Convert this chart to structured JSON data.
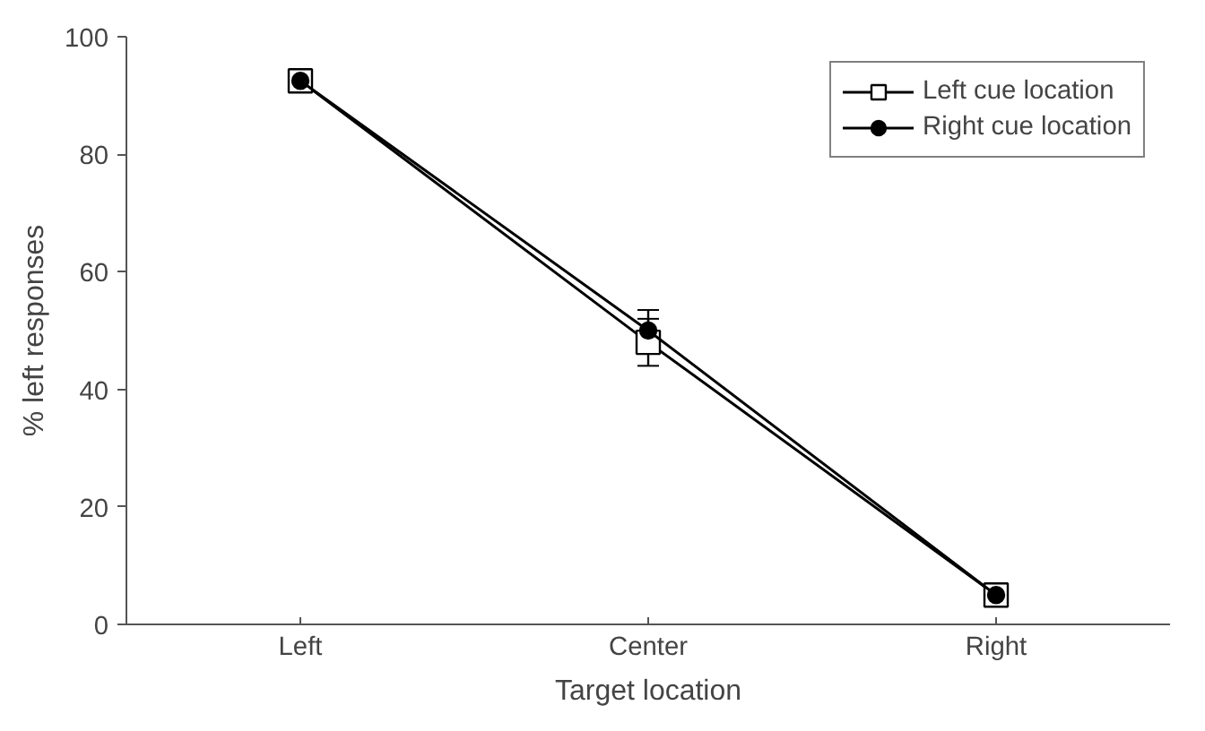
{
  "chart_data": {
    "type": "line",
    "xlabel": "Target location",
    "ylabel": "% left responses",
    "categories": [
      "Left",
      "Center",
      "Right"
    ],
    "series": [
      {
        "name": "Left cue location",
        "color": "#000000",
        "marker": "square",
        "values": [
          92.5,
          48,
          5
        ],
        "errors": [
          null,
          4,
          null
        ]
      },
      {
        "name": "Right cue location",
        "color": "#000000",
        "marker": "circle",
        "values": [
          92.5,
          50,
          5
        ],
        "errors": [
          null,
          3.5,
          null
        ]
      }
    ],
    "ylim": [
      0,
      100
    ],
    "yticks": [
      0,
      20,
      40,
      60,
      80,
      100
    ],
    "grid": false,
    "legend": "top right"
  }
}
